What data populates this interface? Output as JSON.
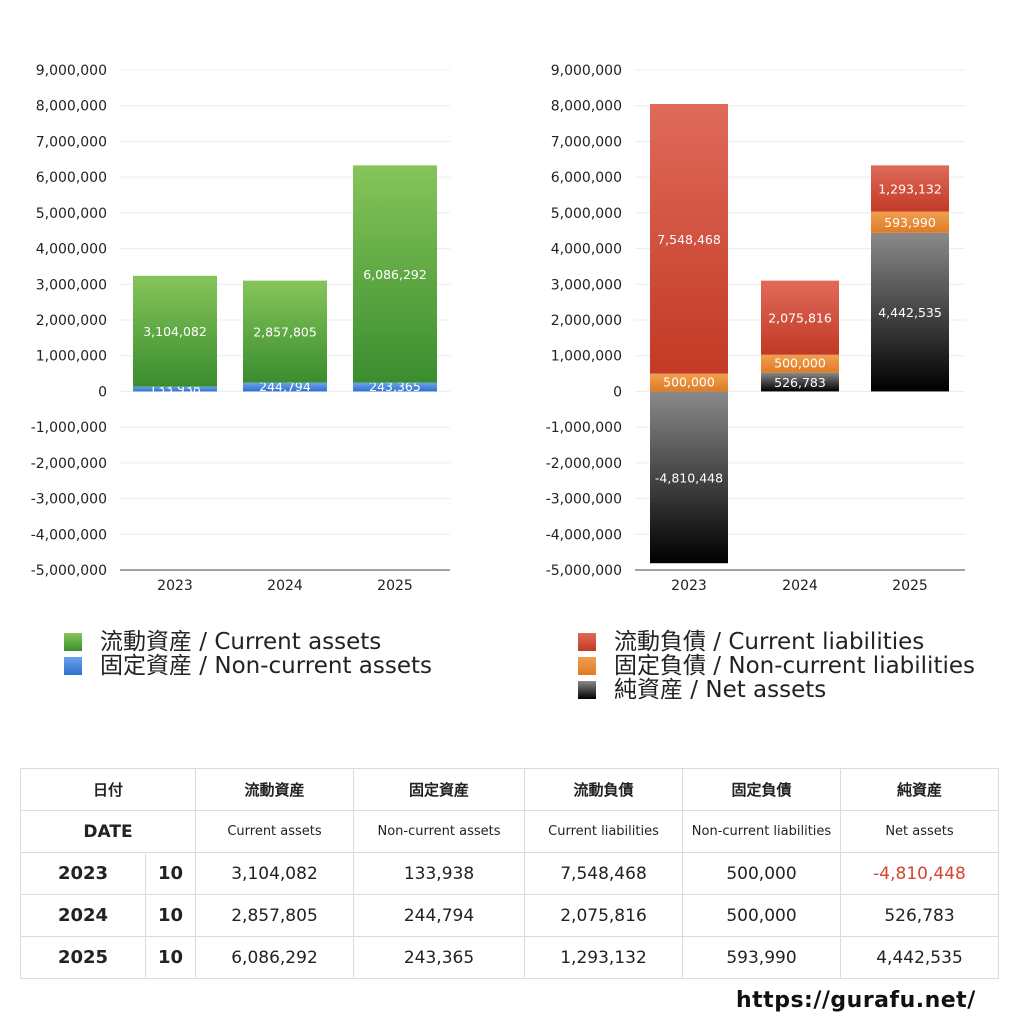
{
  "chart_data": [
    {
      "type": "bar",
      "stacked": true,
      "categories": [
        "2023",
        "2024",
        "2025"
      ],
      "ylim": [
        -5000000,
        9000000
      ],
      "ytick_step": 1000000,
      "series": [
        {
          "name": "固定資産 / Non-current assets",
          "values": [
            133938,
            244794,
            243365
          ],
          "labels": [
            "133,938",
            "244,794",
            "243,365"
          ],
          "color": "#3f7fd6"
        },
        {
          "name": "流動資産 / Current assets",
          "values": [
            3104082,
            2857805,
            6086292
          ],
          "labels": [
            "3,104,082",
            "2,857,805",
            "6,086,292"
          ],
          "color": "#4e9e3a"
        }
      ],
      "grid": true,
      "legend_position": "bottom"
    },
    {
      "type": "bar",
      "stacked": true,
      "categories": [
        "2023",
        "2024",
        "2025"
      ],
      "ylim": [
        -5000000,
        9000000
      ],
      "ytick_step": 1000000,
      "series": [
        {
          "name": "純資産 / Net assets",
          "values": [
            -4810448,
            526783,
            4442535
          ],
          "labels": [
            "-4,810,448",
            "526,783",
            "4,442,535"
          ],
          "color": "#3a3a3a"
        },
        {
          "name": "固定負債 / Non-current liabilities",
          "values": [
            500000,
            500000,
            593990
          ],
          "labels": [
            "500,000",
            "500,000",
            "593,990"
          ],
          "color": "#e6832e"
        },
        {
          "name": "流動負債 / Current liabilities",
          "values": [
            7548468,
            2075816,
            1293132
          ],
          "labels": [
            "7,548,468",
            "2,075,816",
            "1,293,132"
          ],
          "color": "#cc4433"
        }
      ],
      "grid": true,
      "legend_position": "bottom"
    }
  ],
  "legend_left": [
    {
      "label": "流動資産 / Current assets",
      "color": "#4e9e3a"
    },
    {
      "label": "固定資産 / Non-current assets",
      "color": "#3f7fd6"
    }
  ],
  "legend_right": [
    {
      "label": "流動負債 / Current liabilities",
      "color": "#cc4433"
    },
    {
      "label": "固定負債 / Non-current liabilities",
      "color": "#e6832e"
    },
    {
      "label": "純資産 / Net assets",
      "color": "#2a2a2a"
    }
  ],
  "table": {
    "header_jp": [
      "日付",
      "流動資産",
      "固定資産",
      "流動負債",
      "固定負債",
      "純資産"
    ],
    "header_date": "DATE",
    "header_en": [
      "Current assets",
      "Non-current assets",
      "Current liabilities",
      "Non-current liabilities",
      "Net assets"
    ],
    "rows": [
      {
        "year": "2023",
        "month": "10",
        "cells": [
          "3,104,082",
          "133,938",
          "7,548,468",
          "500,000",
          "-4,810,448"
        ]
      },
      {
        "year": "2024",
        "month": "10",
        "cells": [
          "2,857,805",
          "244,794",
          "2,075,816",
          "500,000",
          "526,783"
        ]
      },
      {
        "year": "2025",
        "month": "10",
        "cells": [
          "6,086,292",
          "243,365",
          "1,293,132",
          "593,990",
          "4,442,535"
        ]
      }
    ]
  },
  "footer_url": "https://gurafu.net/",
  "negative_color": "#d9452e"
}
